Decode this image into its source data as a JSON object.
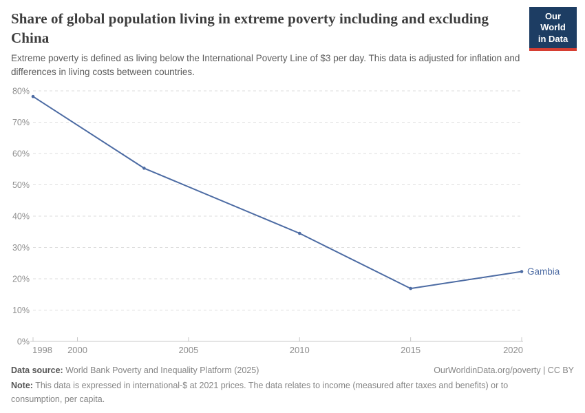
{
  "header": {
    "title": "Share of global population living in extreme poverty including and excluding China",
    "subtitle": "Extreme poverty is defined as living below the International Poverty Line of $3 per day. This data is adjusted for inflation and differences in living costs between countries.",
    "logo": {
      "line1": "Our World",
      "line2": "in Data",
      "bg_color": "#1d3d63",
      "accent_color": "#d63e32"
    }
  },
  "chart_data": {
    "type": "line",
    "title": "Share of global population living in extreme poverty including and excluding China",
    "x": [
      1998,
      2003,
      2010,
      2015,
      2020
    ],
    "series": [
      {
        "name": "Gambia",
        "color": "#4c6ba3",
        "values": [
          78.2,
          55.3,
          34.5,
          16.9,
          22.3
        ]
      }
    ],
    "end_label": "Gambia",
    "xlim": [
      1998,
      2020
    ],
    "ylim": [
      0,
      80
    ],
    "x_ticks": [
      1998,
      2000,
      2005,
      2010,
      2015,
      2020
    ],
    "y_ticks": [
      0,
      10,
      20,
      30,
      40,
      50,
      60,
      70,
      80
    ],
    "y_suffix": "%",
    "grid": "horizontal-dashed",
    "legend": "end-of-line-label",
    "grid_color": "#dcdcdc",
    "axis_color": "#c8c8c8",
    "tick_label_color": "#8e8e8e"
  },
  "footer": {
    "datasource_label": "Data source:",
    "datasource_text": "World Bank Poverty and Inequality Platform (2025)",
    "attribution": "OurWorldinData.org/poverty | CC BY",
    "note_label": "Note:",
    "note_text": "This data is expressed in international-$ at 2021 prices. The data relates to income (measured after taxes and benefits) or to consumption, per capita."
  },
  "colors": {
    "background": "#ffffff",
    "title": "#3d3d3d",
    "subtitle": "#5b5b5b",
    "footer_text": "#858585",
    "footer_label": "#555555"
  }
}
